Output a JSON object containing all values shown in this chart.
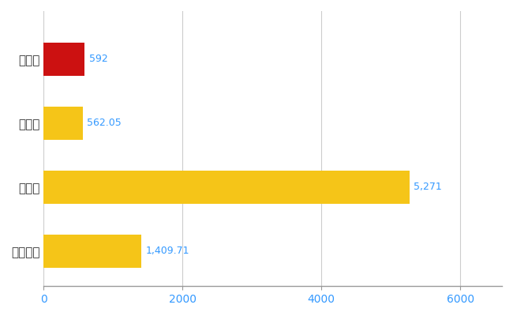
{
  "categories": [
    "大淀町",
    "県平均",
    "県最大",
    "全国平均"
  ],
  "values": [
    592,
    562.05,
    5271,
    1409.71
  ],
  "bar_colors": [
    "#cc1111",
    "#f5c518",
    "#f5c518",
    "#f5c518"
  ],
  "value_labels": [
    "592",
    "562.05",
    "5,271",
    "1,409.71"
  ],
  "xlim": [
    0,
    6600
  ],
  "xticks": [
    0,
    2000,
    4000,
    6000
  ],
  "background_color": "#ffffff",
  "grid_color": "#cccccc",
  "label_color": "#3399ff",
  "bar_height": 0.52,
  "figsize": [
    6.5,
    4.0
  ],
  "dpi": 100
}
